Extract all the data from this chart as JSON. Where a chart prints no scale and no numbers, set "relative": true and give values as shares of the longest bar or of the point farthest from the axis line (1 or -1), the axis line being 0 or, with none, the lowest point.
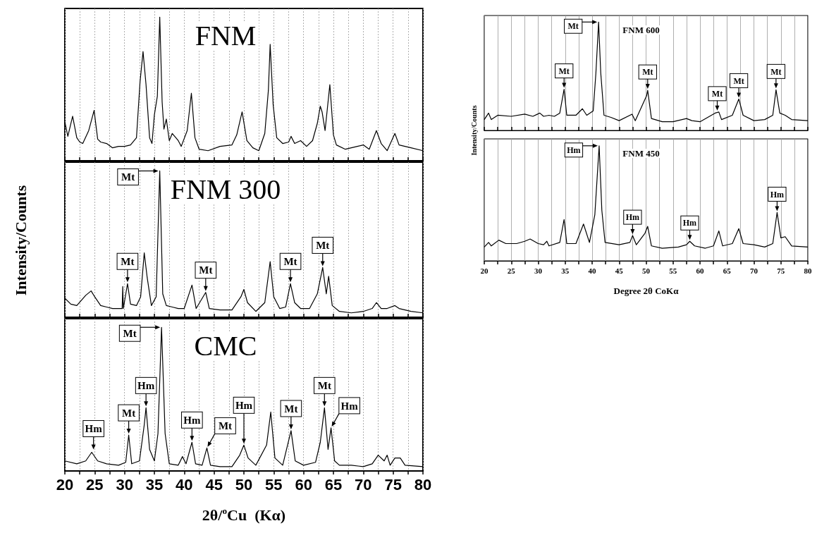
{
  "chart_data": [
    {
      "type": "line",
      "relative": true,
      "title": "FNM",
      "color": "#000000",
      "marker": "none",
      "grid": "x",
      "tick_labels": false,
      "x": [
        20,
        20.5,
        21.3,
        22,
        22.5,
        23,
        24,
        24.9,
        25.5,
        26,
        27,
        28,
        29,
        30,
        31,
        32,
        32.6,
        33.1,
        33.6,
        34.2,
        34.6,
        35,
        35.5,
        35.9,
        36.3,
        36.6,
        37,
        37.5,
        38,
        39,
        39.5,
        40.5,
        41.2,
        41.8,
        42.5,
        44,
        46,
        48,
        48.8,
        49.7,
        50.5,
        51.5,
        52.5,
        53.5,
        54.1,
        54.4,
        54.9,
        55.5,
        56.5,
        57.5,
        57.9,
        58.5,
        59.5,
        60.5,
        61.5,
        62.3,
        62.8,
        63.1,
        63.6,
        64.4,
        65,
        65.5,
        67,
        69,
        70,
        71,
        72.2,
        73,
        74,
        75.3,
        76,
        77,
        78,
        80
      ],
      "values": [
        0.27,
        0.17,
        0.31,
        0.16,
        0.13,
        0.12,
        0.21,
        0.35,
        0.15,
        0.13,
        0.12,
        0.09,
        0.1,
        0.1,
        0.11,
        0.16,
        0.55,
        0.76,
        0.53,
        0.16,
        0.12,
        0.32,
        0.45,
        1.0,
        0.41,
        0.22,
        0.29,
        0.14,
        0.19,
        0.14,
        0.1,
        0.21,
        0.47,
        0.16,
        0.08,
        0.07,
        0.1,
        0.11,
        0.18,
        0.34,
        0.14,
        0.09,
        0.07,
        0.19,
        0.49,
        0.81,
        0.39,
        0.16,
        0.12,
        0.13,
        0.17,
        0.12,
        0.14,
        0.1,
        0.14,
        0.26,
        0.38,
        0.34,
        0.21,
        0.53,
        0.18,
        0.11,
        0.08,
        0.1,
        0.11,
        0.08,
        0.21,
        0.12,
        0.07,
        0.19,
        0.11,
        0.1,
        0.09,
        0.07
      ],
      "xlim": [
        20,
        80
      ],
      "xticks": [
        20,
        {
          "value": 22.5,
          "label": null
        },
        25,
        {
          "value": 27.5,
          "label": null
        },
        30,
        {
          "value": 32.5,
          "label": null
        },
        35,
        {
          "value": 37.5,
          "label": null
        },
        40,
        {
          "value": 42.5,
          "label": null
        },
        45,
        {
          "value": 47.5,
          "label": null
        },
        50,
        {
          "value": 52.5,
          "label": null
        },
        55,
        {
          "value": 57.5,
          "label": null
        },
        60,
        {
          "value": 62.5,
          "label": null
        },
        65,
        {
          "value": 67.5,
          "label": null
        },
        70,
        {
          "value": 72.5,
          "label": null
        },
        75,
        {
          "value": 77.5,
          "label": null
        },
        80
      ]
    },
    {
      "type": "line",
      "relative": true,
      "title": "FNM 300",
      "ylabel": "Intensity/Counts",
      "color": "#000000",
      "marker": "none",
      "grid": "x",
      "tick_labels": false,
      "x": [
        20,
        21,
        22,
        23.5,
        24.4,
        25,
        26,
        27,
        28,
        29.6,
        29.7,
        29.8,
        30.5,
        31,
        32,
        32.7,
        33.3,
        33.8,
        34.5,
        35.3,
        35.9,
        36.4,
        37,
        38,
        39,
        40,
        41.3,
        42,
        43.6,
        44.2,
        46,
        48,
        49.5,
        50,
        50.6,
        52,
        53.5,
        54.4,
        55,
        56,
        57,
        57.8,
        58.5,
        59.5,
        61,
        62.3,
        63.2,
        63.8,
        64.2,
        64.8,
        66,
        68,
        70,
        71.5,
        72.2,
        73,
        74,
        75.3,
        76,
        78,
        80
      ],
      "values": [
        0.13,
        0.09,
        0.08,
        0.15,
        0.18,
        0.14,
        0.08,
        0.07,
        0.06,
        0.06,
        0.21,
        0.06,
        0.23,
        0.09,
        0.08,
        0.14,
        0.44,
        0.27,
        0.08,
        0.14,
        1.0,
        0.16,
        0.08,
        0.07,
        0.06,
        0.06,
        0.22,
        0.06,
        0.17,
        0.06,
        0.05,
        0.05,
        0.14,
        0.19,
        0.1,
        0.04,
        0.1,
        0.38,
        0.14,
        0.06,
        0.07,
        0.23,
        0.1,
        0.06,
        0.06,
        0.16,
        0.34,
        0.16,
        0.28,
        0.08,
        0.04,
        0.03,
        0.04,
        0.06,
        0.1,
        0.06,
        0.06,
        0.08,
        0.06,
        0.04,
        0.03
      ],
      "xlim": [
        20,
        80
      ],
      "xticks": [
        20,
        {
          "value": 22.5,
          "label": null
        },
        25,
        {
          "value": 27.5,
          "label": null
        },
        30,
        {
          "value": 32.5,
          "label": null
        },
        35,
        {
          "value": 37.5,
          "label": null
        },
        40,
        {
          "value": 42.5,
          "label": null
        },
        45,
        {
          "value": 47.5,
          "label": null
        },
        50,
        {
          "value": 52.5,
          "label": null
        },
        55,
        {
          "value": 57.5,
          "label": null
        },
        60,
        {
          "value": 62.5,
          "label": null
        },
        65,
        {
          "value": 67.5,
          "label": null
        },
        70,
        {
          "value": 72.5,
          "label": null
        },
        75,
        {
          "value": 77.5,
          "label": null
        },
        80
      ],
      "annotations": [
        {
          "text": "Mt",
          "x": 30.5,
          "y": 0.23
        },
        {
          "text": "Mt",
          "x": 35.9,
          "y": 1.0
        },
        {
          "text": "Mt",
          "x": 43.6,
          "y": 0.17
        },
        {
          "text": "Mt",
          "x": 57.8,
          "y": 0.23
        },
        {
          "text": "Mt",
          "x": 63.2,
          "y": 0.34
        }
      ]
    },
    {
      "type": "line",
      "relative": true,
      "title": "CMC",
      "xlabel": "2θ/$^{o}$Cu  (Kα)",
      "color": "#000000",
      "marker": "none",
      "grid": "x",
      "tick_labels": "x",
      "x": [
        20,
        22,
        23.5,
        24.5,
        25.5,
        27,
        29,
        30.2,
        30.7,
        31.2,
        32.5,
        33.3,
        33.6,
        34.2,
        35,
        35.6,
        36.2,
        36.8,
        37.5,
        39,
        39.7,
        40.3,
        41.3,
        41.9,
        43,
        43.8,
        44.4,
        46,
        48,
        49.3,
        50,
        50.7,
        52,
        53.8,
        54.5,
        55.2,
        56.5,
        57.9,
        58.6,
        60,
        62,
        62.8,
        63.5,
        64.1,
        64.6,
        65.2,
        66,
        68,
        70,
        71.5,
        72.5,
        73.5,
        74,
        74.5,
        75.3,
        76.2,
        77,
        80
      ],
      "values": [
        0.07,
        0.05,
        0.07,
        0.13,
        0.07,
        0.05,
        0.04,
        0.06,
        0.25,
        0.05,
        0.07,
        0.32,
        0.44,
        0.15,
        0.07,
        0.26,
        1.0,
        0.26,
        0.05,
        0.04,
        0.1,
        0.05,
        0.2,
        0.05,
        0.04,
        0.16,
        0.04,
        0.03,
        0.03,
        0.11,
        0.18,
        0.09,
        0.04,
        0.18,
        0.41,
        0.09,
        0.04,
        0.28,
        0.07,
        0.04,
        0.06,
        0.2,
        0.44,
        0.15,
        0.3,
        0.07,
        0.04,
        0.04,
        0.03,
        0.05,
        0.11,
        0.07,
        0.11,
        0.04,
        0.09,
        0.09,
        0.04,
        0.03
      ],
      "xlim": [
        20,
        80
      ],
      "xticks": [
        20,
        {
          "value": 22.5,
          "label": null
        },
        25,
        {
          "value": 27.5,
          "label": null
        },
        30,
        {
          "value": 32.5,
          "label": null
        },
        35,
        {
          "value": 37.5,
          "label": null
        },
        40,
        {
          "value": 42.5,
          "label": null
        },
        45,
        {
          "value": 47.5,
          "label": null
        },
        50,
        {
          "value": 52.5,
          "label": null
        },
        55,
        {
          "value": 57.5,
          "label": null
        },
        60,
        {
          "value": 62.5,
          "label": null
        },
        65,
        {
          "value": 67.5,
          "label": null
        },
        70,
        {
          "value": 72.5,
          "label": null
        },
        75,
        {
          "value": 77.5,
          "label": null
        },
        80
      ],
      "annotations": [
        {
          "text": "Hm",
          "x": 24.8,
          "y": 0.14
        },
        {
          "text": "Mt",
          "x": 30.7,
          "y": 0.25
        },
        {
          "text": "Hm",
          "x": 33.6,
          "y": 0.44
        },
        {
          "text": "Mt",
          "x": 36.2,
          "y": 1.0
        },
        {
          "text": "Hm",
          "x": 41.3,
          "y": 0.2
        },
        {
          "text": "Mt",
          "x": 43.8,
          "y": 0.16
        },
        {
          "text": "Hm",
          "x": 50,
          "y": 0.18
        },
        {
          "text": "Mt",
          "x": 57.9,
          "y": 0.28
        },
        {
          "text": "Mt",
          "x": 63.5,
          "y": 0.44
        },
        {
          "text": "Hm",
          "x": 64.6,
          "y": 0.3
        }
      ]
    },
    {
      "type": "line",
      "relative": true,
      "title": "FNM 600",
      "ylabel": "Intensity/Counts",
      "color": "#000000",
      "marker": "none",
      "grid": "x",
      "tick_labels": false,
      "x": [
        20,
        20.8,
        21.3,
        22.5,
        25,
        27.5,
        29,
        30.3,
        31,
        32,
        33,
        34,
        34.8,
        35.3,
        37,
        38.2,
        39,
        40.2,
        40.7,
        41.2,
        41.6,
        42.2,
        43.5,
        45,
        47.4,
        48,
        50.1,
        50.3,
        51,
        53,
        55,
        57.5,
        58.5,
        60,
        62.8,
        63.5,
        64,
        66,
        67.2,
        68,
        70,
        72,
        73.5,
        74.1,
        74.8,
        75.8,
        77,
        80
      ],
      "values": [
        0.1,
        0.16,
        0.1,
        0.14,
        0.13,
        0.15,
        0.13,
        0.16,
        0.13,
        0.14,
        0.13,
        0.16,
        0.38,
        0.14,
        0.14,
        0.2,
        0.14,
        0.18,
        0.53,
        1.0,
        0.53,
        0.14,
        0.12,
        0.09,
        0.15,
        0.09,
        0.32,
        0.37,
        0.11,
        0.08,
        0.08,
        0.11,
        0.09,
        0.08,
        0.16,
        0.17,
        0.1,
        0.14,
        0.29,
        0.14,
        0.09,
        0.1,
        0.14,
        0.375,
        0.16,
        0.14,
        0.1,
        0.09
      ],
      "xlim": [
        20,
        80
      ],
      "xticks": [
        20,
        {
          "value": 22.5,
          "label": null
        },
        25,
        {
          "value": 27.5,
          "label": null
        },
        30,
        {
          "value": 32.5,
          "label": null
        },
        35,
        {
          "value": 37.5,
          "label": null
        },
        40,
        {
          "value": 42.5,
          "label": null
        },
        45,
        {
          "value": 47.5,
          "label": null
        },
        50,
        {
          "value": 52.5,
          "label": null
        },
        55,
        {
          "value": 57.5,
          "label": null
        },
        60,
        {
          "value": 62.5,
          "label": null
        },
        65,
        {
          "value": 67.5,
          "label": null
        },
        70,
        {
          "value": 72.5,
          "label": null
        },
        75,
        {
          "value": 77.5,
          "label": null
        },
        80
      ],
      "annotations": [
        {
          "text": "Mt",
          "x": 41.2,
          "y": 1.0
        },
        {
          "text": "Mt",
          "x": 34.8,
          "y": 0.38
        },
        {
          "text": "Mt",
          "x": 50.3,
          "y": 0.37
        },
        {
          "text": "Mt",
          "x": 63.2,
          "y": 0.17
        },
        {
          "text": "Mt",
          "x": 67.2,
          "y": 0.29
        },
        {
          "text": "Mt",
          "x": 74.1,
          "y": 0.375
        }
      ]
    },
    {
      "type": "line",
      "relative": true,
      "title": "FNM 450",
      "xlabel": "Degree 2θ CoKα",
      "color": "#000000",
      "marker": "none",
      "grid": "x",
      "tick_labels": "x",
      "x": [
        20,
        20.8,
        21.3,
        22.7,
        24,
        26,
        27.5,
        28.5,
        30,
        31,
        31.6,
        32,
        34,
        34.8,
        35.3,
        37,
        38.4,
        39.5,
        40.5,
        41.3,
        41.8,
        42.4,
        45,
        47,
        47.5,
        48.2,
        49.8,
        50.3,
        51,
        53,
        56,
        57.5,
        58.1,
        59,
        61,
        62.5,
        63.5,
        64.2,
        66,
        67.2,
        68,
        70,
        72,
        73.5,
        74.3,
        75,
        75.8,
        77,
        80
      ],
      "values": [
        0.12,
        0.16,
        0.13,
        0.18,
        0.15,
        0.15,
        0.17,
        0.19,
        0.15,
        0.14,
        0.17,
        0.13,
        0.16,
        0.36,
        0.15,
        0.15,
        0.32,
        0.16,
        0.4,
        1.0,
        0.44,
        0.16,
        0.14,
        0.16,
        0.22,
        0.14,
        0.24,
        0.3,
        0.13,
        0.11,
        0.12,
        0.14,
        0.17,
        0.13,
        0.11,
        0.13,
        0.26,
        0.13,
        0.15,
        0.28,
        0.15,
        0.14,
        0.12,
        0.15,
        0.42,
        0.2,
        0.21,
        0.13,
        0.12
      ],
      "xlim": [
        20,
        80
      ],
      "xticks": [
        20,
        {
          "value": 22.5,
          "label": null
        },
        25,
        {
          "value": 27.5,
          "label": null
        },
        30,
        {
          "value": 32.5,
          "label": null
        },
        35,
        {
          "value": 37.5,
          "label": null
        },
        40,
        {
          "value": 42.5,
          "label": null
        },
        45,
        {
          "value": 47.5,
          "label": null
        },
        50,
        {
          "value": 52.5,
          "label": null
        },
        55,
        {
          "value": 57.5,
          "label": null
        },
        60,
        {
          "value": 62.5,
          "label": null
        },
        65,
        {
          "value": 67.5,
          "label": null
        },
        70,
        {
          "value": 72.5,
          "label": null
        },
        75,
        {
          "value": 77.5,
          "label": null
        },
        80
      ],
      "annotations": [
        {
          "text": "Hm",
          "x": 41.3,
          "y": 1.0
        },
        {
          "text": "Hm",
          "x": 47.5,
          "y": 0.22
        },
        {
          "text": "Hm",
          "x": 58.1,
          "y": 0.17
        },
        {
          "text": "Hm",
          "x": 74.3,
          "y": 0.42
        }
      ]
    }
  ]
}
